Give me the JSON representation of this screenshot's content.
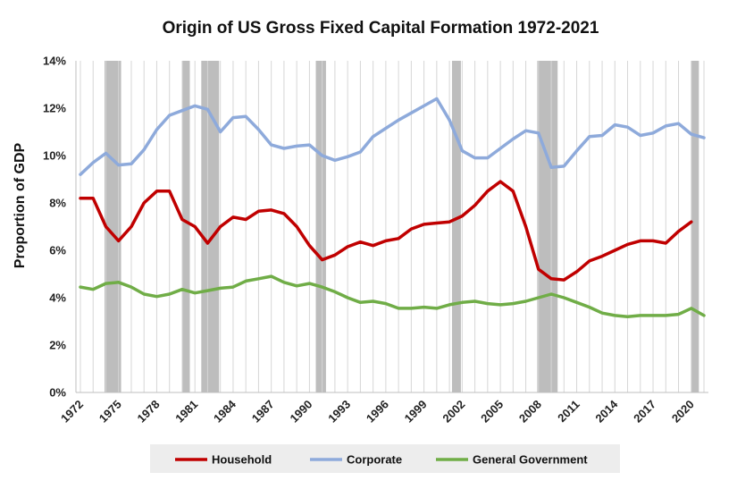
{
  "chart_data": {
    "type": "line",
    "title": "Origin of US Gross Fixed Capital Formation 1972-2021",
    "xlabel": "",
    "ylabel": "Proportion of GDP",
    "x": [
      1972,
      1973,
      1974,
      1975,
      1976,
      1977,
      1978,
      1979,
      1980,
      1981,
      1982,
      1983,
      1984,
      1985,
      1986,
      1987,
      1988,
      1989,
      1990,
      1991,
      1992,
      1993,
      1994,
      1995,
      1996,
      1997,
      1998,
      1999,
      2000,
      2001,
      2002,
      2003,
      2004,
      2005,
      2006,
      2007,
      2008,
      2009,
      2010,
      2011,
      2012,
      2013,
      2014,
      2015,
      2016,
      2017,
      2018,
      2019,
      2020,
      2021
    ],
    "x_tick_labels": [
      "1972",
      "1975",
      "1978",
      "1981",
      "1984",
      "1987",
      "1990",
      "1993",
      "1996",
      "1999",
      "2002",
      "2005",
      "2008",
      "2011",
      "2014",
      "2017",
      "2020"
    ],
    "x_tick_years": [
      1972,
      1975,
      1978,
      1981,
      1984,
      1987,
      1990,
      1993,
      1996,
      1999,
      2002,
      2005,
      2008,
      2011,
      2014,
      2017,
      2020
    ],
    "ylim": [
      0,
      14
    ],
    "y_ticks": [
      0,
      2,
      4,
      6,
      8,
      10,
      12,
      14
    ],
    "y_tick_labels": [
      "0%",
      "2%",
      "4%",
      "6%",
      "8%",
      "10%",
      "12%",
      "14%"
    ],
    "grid": "vertical",
    "legend_position": "bottom",
    "recessions": [
      [
        1973.9,
        1975.2
      ],
      [
        1980.0,
        1980.6
      ],
      [
        1981.5,
        1982.9
      ],
      [
        1990.5,
        1991.3
      ],
      [
        2001.2,
        2001.9
      ],
      [
        2007.9,
        2009.5
      ],
      [
        2020.0,
        2020.6
      ]
    ],
    "series": [
      {
        "name": "Household",
        "color": "#c00000",
        "values": [
          8.2,
          8.2,
          7.0,
          6.4,
          7.0,
          8.0,
          8.5,
          8.5,
          7.3,
          7.0,
          6.3,
          7.0,
          7.4,
          7.3,
          7.65,
          7.7,
          7.55,
          7.0,
          6.2,
          5.6,
          5.8,
          6.15,
          6.35,
          6.2,
          6.4,
          6.5,
          6.9,
          7.1,
          7.15,
          7.2,
          7.45,
          7.9,
          8.5,
          8.9,
          8.5,
          7.0,
          5.2,
          4.8,
          4.75,
          5.1,
          5.55,
          5.75,
          6.0,
          6.25,
          6.4,
          6.4,
          6.3,
          6.8,
          7.2,
          null
        ]
      },
      {
        "name": "Corporate",
        "color": "#8eaadb",
        "values": [
          9.2,
          9.7,
          10.1,
          9.6,
          9.65,
          10.25,
          11.1,
          11.7,
          11.9,
          12.1,
          11.95,
          11.0,
          11.6,
          11.65,
          11.1,
          10.45,
          10.3,
          10.4,
          10.45,
          10.0,
          9.8,
          9.95,
          10.15,
          10.8,
          11.15,
          11.5,
          11.8,
          12.1,
          12.4,
          11.5,
          10.2,
          9.9,
          9.9,
          10.3,
          10.7,
          11.05,
          10.95,
          9.5,
          9.55,
          10.2,
          10.8,
          10.85,
          11.3,
          11.2,
          10.85,
          10.95,
          11.25,
          11.35,
          10.9,
          10.75
        ]
      },
      {
        "name": "General Government",
        "color": "#70ad47",
        "values": [
          4.45,
          4.35,
          4.6,
          4.65,
          4.45,
          4.15,
          4.05,
          4.15,
          4.35,
          4.2,
          4.3,
          4.4,
          4.45,
          4.7,
          4.8,
          4.9,
          4.65,
          4.5,
          4.6,
          4.45,
          4.25,
          4.0,
          3.8,
          3.85,
          3.75,
          3.55,
          3.55,
          3.6,
          3.55,
          3.7,
          3.8,
          3.85,
          3.75,
          3.7,
          3.75,
          3.85,
          4.0,
          4.15,
          4.0,
          3.8,
          3.6,
          3.35,
          3.25,
          3.2,
          3.25,
          3.25,
          3.25,
          3.3,
          3.55,
          3.25
        ]
      }
    ]
  }
}
